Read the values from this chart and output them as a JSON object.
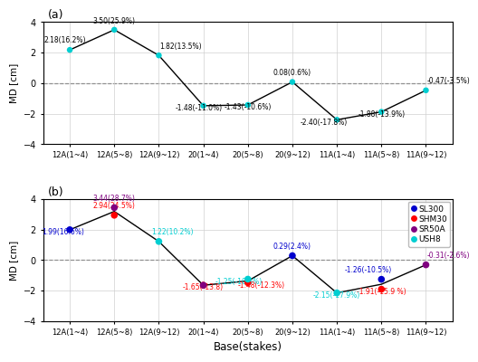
{
  "x_labels": [
    "12A(1~4)",
    "12A(5~8)",
    "12A(9~12)",
    "20(1~4)",
    "20(5~8)",
    "20(9~12)",
    "11A(1~4)",
    "11A(5~8)",
    "11A(9~12)"
  ],
  "panel_a": {
    "values": [
      2.18,
      3.5,
      1.82,
      -1.48,
      -1.43,
      0.08,
      -2.4,
      -1.88,
      -0.47
    ],
    "labels": [
      "2.18(16.2%)",
      "3.50(25.9%)",
      "1.82(13.5%)",
      "-1.48(-11.0%)",
      "-1.43(-10.6%)",
      "0.08(0.6%)",
      "-2.40(-17.8%)",
      "-1.88(-13.9%)",
      "-0.47(-3.5%)"
    ],
    "color": "#00CED1",
    "label_offsets_x": [
      -0.1,
      0.0,
      0.5,
      -0.1,
      0.0,
      0.0,
      -0.3,
      0.0,
      0.5
    ],
    "label_offsets_y": [
      0.35,
      0.32,
      0.35,
      -0.42,
      -0.42,
      0.35,
      -0.42,
      -0.42,
      0.35
    ]
  },
  "panel_b": {
    "line_x": [
      0,
      1,
      2,
      3,
      4,
      5,
      6,
      7,
      8
    ],
    "line_y": [
      1.99,
      3.19,
      1.22,
      -1.65,
      -1.365,
      0.29,
      -2.15,
      -1.585,
      -0.31
    ],
    "series": {
      "SL300": {
        "values": [
          1.99,
          null,
          null,
          null,
          null,
          0.29,
          null,
          -1.26,
          null
        ],
        "labels": [
          "1.99(16.6%)",
          null,
          null,
          null,
          null,
          "0.29(2.4%)",
          null,
          "-1.26(-10.5%)",
          null
        ],
        "color": "#0000CD",
        "lx": [
          -0.15,
          null,
          null,
          null,
          null,
          0.0,
          null,
          -0.3,
          null
        ],
        "ly": [
          -0.42,
          null,
          null,
          null,
          null,
          0.35,
          null,
          0.35,
          null
        ]
      },
      "SHM30": {
        "values": [
          null,
          2.94,
          null,
          -1.65,
          -1.48,
          null,
          null,
          -1.91,
          null
        ],
        "labels": [
          null,
          "2.94(24.5%)",
          null,
          "-1.65(-13.8)",
          "-1.48(-12.3%)",
          null,
          null,
          "-1.91(-15.9 %)",
          null
        ],
        "color": "#FF0000",
        "lx": [
          null,
          0.0,
          null,
          0.0,
          0.3,
          null,
          null,
          0.0,
          null
        ],
        "ly": [
          null,
          0.35,
          null,
          -0.42,
          -0.42,
          null,
          null,
          -0.42,
          null
        ]
      },
      "SR50A": {
        "values": [
          null,
          3.44,
          null,
          -1.65,
          null,
          null,
          null,
          null,
          -0.31
        ],
        "labels": [
          null,
          "3.44(28.7%)",
          null,
          null,
          null,
          null,
          null,
          null,
          "-0.31(-2.6%)"
        ],
        "color": "#800080",
        "lx": [
          null,
          0.0,
          null,
          null,
          null,
          null,
          null,
          null,
          0.5
        ],
        "ly": [
          null,
          0.35,
          null,
          null,
          null,
          null,
          null,
          null,
          0.35
        ]
      },
      "USH8": {
        "values": [
          null,
          null,
          1.22,
          null,
          -1.25,
          null,
          -2.15,
          null,
          null
        ],
        "labels": [
          null,
          null,
          "1.22(10.2%)",
          null,
          "-1.25(-10.5%)",
          null,
          "-2.15(-17.9%)",
          null,
          null
        ],
        "color": "#00CED1",
        "lx": [
          null,
          null,
          0.3,
          null,
          -0.2,
          null,
          0.0,
          null,
          null
        ],
        "ly": [
          null,
          null,
          0.35,
          null,
          -0.42,
          null,
          -0.42,
          null,
          null
        ]
      }
    }
  },
  "ylim": [
    -4,
    4
  ],
  "yticks": [
    -4,
    -2,
    0,
    2,
    4
  ],
  "ylabel": "MD [cm]",
  "xlabel": "Base(stakes)",
  "bg": "#ffffff",
  "grid_color": "#d0d0d0",
  "series_order": [
    "SL300",
    "SHM30",
    "SR50A",
    "USH8"
  ],
  "series_colors": {
    "SL300": "#0000CD",
    "SHM30": "#FF0000",
    "SR50A": "#800080",
    "USH8": "#00CED1"
  }
}
